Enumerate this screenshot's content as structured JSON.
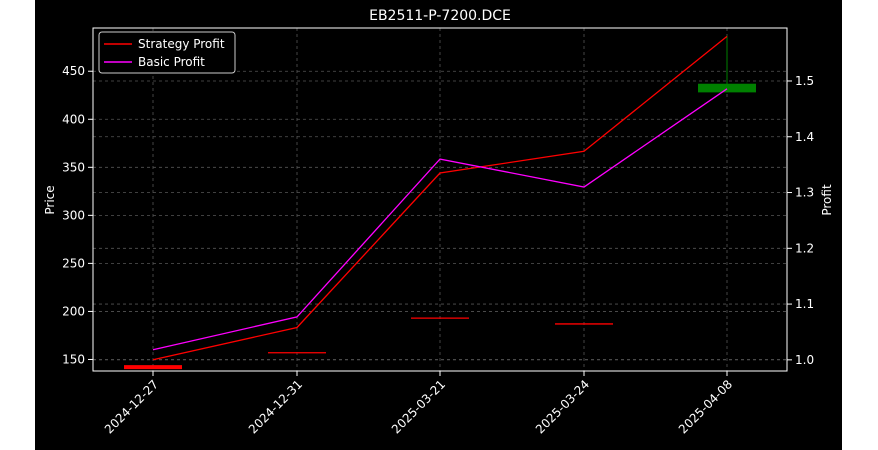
{
  "chart_data": {
    "type": "line",
    "title": "EB2511-P-7200.DCE",
    "xlabel": "",
    "ylabel": "Price",
    "ylabel_right": "Profit",
    "categories": [
      "2024-12-27",
      "2024-12-31",
      "2025-03-21",
      "2025-03-24",
      "2025-04-08"
    ],
    "ylim": [
      138,
      495
    ],
    "ylim_right": [
      0.98,
      1.595
    ],
    "y_ticks": [
      150,
      200,
      250,
      300,
      350,
      400,
      450
    ],
    "y_ticks_right": [
      1.0,
      1.1,
      1.2,
      1.3,
      1.4,
      1.5
    ],
    "grid": true,
    "legend_position": "top-left",
    "series": [
      {
        "name": "Strategy Profit",
        "axis": "right",
        "color": "#ff0000",
        "values": [
          1.0,
          1.058,
          1.335,
          1.374,
          1.58
        ]
      },
      {
        "name": "Basic Profit",
        "axis": "right",
        "color": "#ff00ff",
        "values": [
          1.018,
          1.077,
          1.36,
          1.31,
          1.486
        ]
      }
    ],
    "candles": [
      {
        "open": 142,
        "close": 142,
        "high": 142,
        "low": 142,
        "color": "#ff0000"
      },
      {
        "open": 157,
        "close": 157,
        "high": 157,
        "low": 157,
        "color": "#ff0000"
      },
      {
        "open": 193,
        "close": 193,
        "high": 193,
        "low": 193,
        "color": "#ff0000"
      },
      {
        "open": 187,
        "close": 187,
        "high": 187,
        "low": 187,
        "color": "#ff0000"
      },
      {
        "open": 428,
        "close": 437,
        "high": 487,
        "low": 428,
        "color": "#008000"
      }
    ],
    "colors": {
      "background": "#000000",
      "grid": "#555555",
      "axes": "#ffffff"
    }
  }
}
